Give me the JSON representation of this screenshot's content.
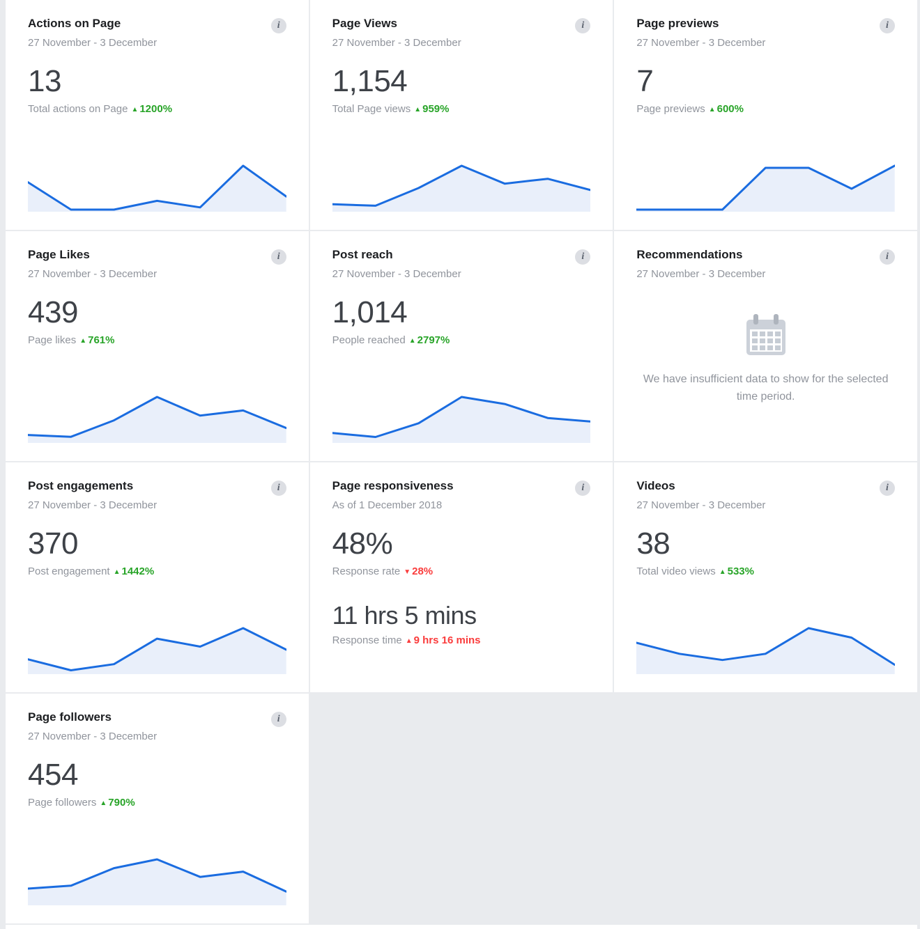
{
  "icons": {
    "info": "i"
  },
  "theme": {
    "page_bg": "#e9ebee",
    "card_bg": "#ffffff",
    "spark_line": "#1a6ce0",
    "spark_fill": "#e9effa",
    "delta_green": "#28a428",
    "delta_red": "#fa3c3c"
  },
  "cards": {
    "actions": {
      "title": "Actions on Page",
      "subtitle": "27 November - 3 December",
      "value": "13",
      "metric": "Total actions on Page",
      "delta_arrow": "▲",
      "delta": "1200%",
      "chart_data": {
        "type": "line",
        "values": [
          2.5,
          0,
          0,
          0.8,
          0.2,
          4,
          1.2
        ]
      }
    },
    "views": {
      "title": "Page Views",
      "subtitle": "27 November - 3 December",
      "value": "1,154",
      "metric": "Total Page views",
      "delta_arrow": "▲",
      "delta": "959%",
      "chart_data": {
        "type": "line",
        "values": [
          33,
          24,
          133,
          270,
          160,
          190,
          120
        ]
      }
    },
    "previews": {
      "title": "Page previews",
      "subtitle": "27 November - 3 December",
      "value": "7",
      "metric": "Page previews",
      "delta_arrow": "▲",
      "delta": "600%",
      "chart_data": {
        "type": "line",
        "values": [
          0,
          0,
          0,
          2,
          2,
          1,
          2.1
        ]
      }
    },
    "likes": {
      "title": "Page Likes",
      "subtitle": "27 November - 3 December",
      "value": "439",
      "metric": "Page likes",
      "delta_arrow": "▲",
      "delta": "761%",
      "chart_data": {
        "type": "line",
        "values": [
          16,
          11,
          56,
          120,
          69,
          83,
          35
        ]
      }
    },
    "reach": {
      "title": "Post reach",
      "subtitle": "27 November - 3 December",
      "value": "1,014",
      "metric": "People reached",
      "delta_arrow": "▲",
      "delta": "2797%",
      "chart_data": {
        "type": "line",
        "values": [
          45,
          22,
          100,
          250,
          210,
          130,
          110
        ]
      }
    },
    "recommendations": {
      "title": "Recommendations",
      "subtitle": "27 November - 3 December",
      "message": "We have insufficient data to show for the selected time period."
    },
    "engagements": {
      "title": "Post engagements",
      "subtitle": "27 November - 3 December",
      "value": "370",
      "metric": "Post engagement",
      "delta_arrow": "▲",
      "delta": "1442%",
      "chart_data": {
        "type": "line",
        "values": [
          29,
          4,
          18,
          76,
          58,
          100,
          51
        ]
      }
    },
    "responsiveness": {
      "title": "Page responsiveness",
      "subtitle": "As of 1 December 2018",
      "value": "48%",
      "metric": "Response rate",
      "delta_arrow": "▼",
      "delta": "28%",
      "value2": "11 hrs 5 mins",
      "metric2": "Response time",
      "delta2_arrow": "▲",
      "delta2": "9 hrs 16 mins"
    },
    "videos": {
      "title": "Videos",
      "subtitle": "27 November - 3 December",
      "value": "38",
      "metric": "Total video views",
      "delta_arrow": "▲",
      "delta": "533%",
      "chart_data": {
        "type": "line",
        "values": [
          8,
          5,
          3.3,
          5,
          12,
          9.4,
          2
        ]
      }
    },
    "followers": {
      "title": "Page followers",
      "subtitle": "27 November - 3 December",
      "value": "454",
      "metric": "Page followers",
      "delta_arrow": "▲",
      "delta": "790%",
      "chart_data": {
        "type": "line",
        "values": [
          25,
          30,
          60,
          75,
          45,
          54,
          20
        ]
      }
    }
  }
}
